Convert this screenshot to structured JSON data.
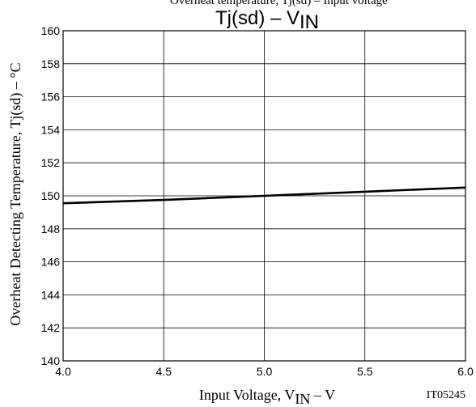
{
  "chart_data": {
    "type": "line",
    "title_main": "Tj(sd)  –  V",
    "title_sub": "IN",
    "top_cut_text": "Overheat temperature, Tj(sd) – Input voltage",
    "xlabel_main": "Input Voltage, V",
    "xlabel_sub": "IN",
    "xlabel_tail": "  –  V",
    "ylabel": "Overheat Detecting Temperature, Tj(sd)  –  °C",
    "code": "IT05245",
    "xlim": [
      4.0,
      6.0
    ],
    "ylim": [
      140,
      160
    ],
    "xticks": [
      "4.0",
      "4.5",
      "5.0",
      "5.5",
      "6.0"
    ],
    "yticks": [
      "140",
      "142",
      "144",
      "146",
      "148",
      "150",
      "152",
      "154",
      "156",
      "158",
      "160"
    ],
    "grid": true,
    "series": [
      {
        "x": [
          4.0,
          4.5,
          5.0,
          5.5,
          6.0
        ],
        "y": [
          149.55,
          149.75,
          150.0,
          150.25,
          150.5
        ]
      }
    ]
  }
}
